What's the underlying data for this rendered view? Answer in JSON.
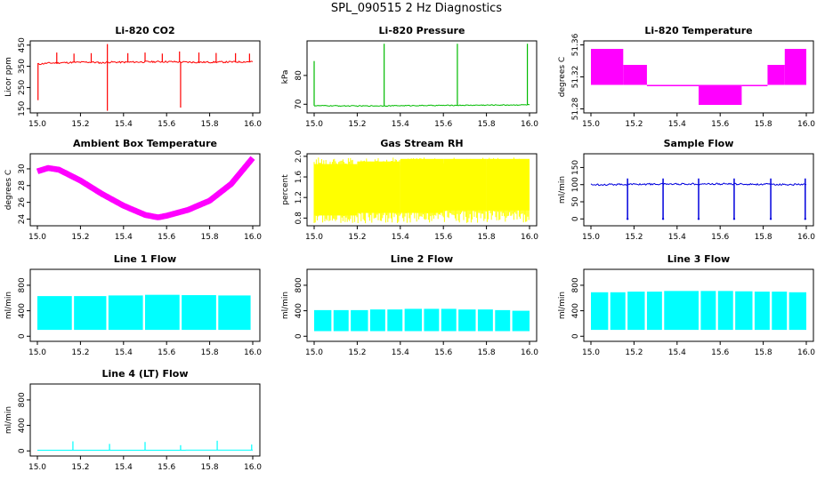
{
  "figure": {
    "title": "SPL_090515  2 Hz Diagnostics"
  },
  "chart_data": [
    {
      "id": "co2",
      "type": "line",
      "title": "Li-820 CO2",
      "ylabel": "Licor ppm",
      "xlim": [
        15.0,
        16.0
      ],
      "ylim": [
        130,
        470
      ],
      "xticks": [
        15.0,
        15.2,
        15.4,
        15.6,
        15.8,
        16.0
      ],
      "xtick_labels": [
        "15.0",
        "15.2",
        "15.4",
        "15.6",
        "15.8",
        "16.0"
      ],
      "yticks": [
        150,
        250,
        350,
        450
      ],
      "ytick_labels": [
        "150",
        "250",
        "350",
        "450"
      ],
      "color": "#ff0000",
      "series": [
        {
          "x": [
            15.0,
            15.05,
            15.15,
            15.25,
            15.3,
            15.33,
            15.4,
            15.5,
            15.6,
            15.67,
            15.75,
            15.85,
            15.95,
            16.0
          ],
          "y": [
            360,
            365,
            368,
            370,
            366,
            370,
            369,
            371,
            372,
            370,
            369,
            370,
            371,
            372
          ]
        }
      ],
      "spikes": [
        {
          "x": 15.003,
          "y": 190
        },
        {
          "x": 15.09,
          "y": 415
        },
        {
          "x": 15.17,
          "y": 410
        },
        {
          "x": 15.25,
          "y": 412
        },
        {
          "x": 15.325,
          "y": 140
        },
        {
          "x": 15.325,
          "y": 455
        },
        {
          "x": 15.42,
          "y": 412
        },
        {
          "x": 15.5,
          "y": 415
        },
        {
          "x": 15.58,
          "y": 410
        },
        {
          "x": 15.665,
          "y": 155
        },
        {
          "x": 15.66,
          "y": 420
        },
        {
          "x": 15.75,
          "y": 415
        },
        {
          "x": 15.83,
          "y": 413
        },
        {
          "x": 15.92,
          "y": 412
        },
        {
          "x": 15.985,
          "y": 410
        }
      ]
    },
    {
      "id": "pressure",
      "type": "line",
      "title": "Li-820 Pressure",
      "ylabel": "kPa",
      "xlim": [
        15.0,
        16.0
      ],
      "ylim": [
        67,
        92
      ],
      "xticks": [
        15.0,
        15.2,
        15.4,
        15.6,
        15.8,
        16.0
      ],
      "xtick_labels": [
        "15.0",
        "15.2",
        "15.4",
        "15.6",
        "15.8",
        "16.0"
      ],
      "yticks": [
        70,
        80
      ],
      "ytick_labels": [
        "70",
        "80"
      ],
      "color": "#00bb00",
      "series": [
        {
          "x": [
            15.0,
            15.2,
            15.4,
            15.6,
            15.8,
            16.0
          ],
          "y": [
            69.5,
            69.4,
            69.5,
            69.6,
            69.7,
            69.8
          ]
        }
      ],
      "spikes": [
        {
          "x": 15.0,
          "y": 85
        },
        {
          "x": 15.325,
          "y": 91
        },
        {
          "x": 15.665,
          "y": 91
        },
        {
          "x": 15.99,
          "y": 91
        }
      ]
    },
    {
      "id": "temperature",
      "type": "line",
      "title": "Li-820 Temperature",
      "ylabel": "degrees C",
      "xlim": [
        15.0,
        16.0
      ],
      "ylim": [
        51.275,
        51.365
      ],
      "xticks": [
        15.0,
        15.2,
        15.4,
        15.6,
        15.8,
        16.0
      ],
      "xtick_labels": [
        "15.0",
        "15.2",
        "15.4",
        "15.6",
        "15.8",
        "16.0"
      ],
      "yticks": [
        51.28,
        51.32,
        51.36
      ],
      "ytick_labels": [
        "51.28",
        "51.32",
        "51.36"
      ],
      "color": "#ff00ff",
      "segments": [
        {
          "x0": 15.0,
          "x1": 15.15,
          "lo": 51.31,
          "hi": 51.355
        },
        {
          "x0": 15.15,
          "x1": 15.26,
          "lo": 51.31,
          "hi": 51.335
        },
        {
          "x0": 15.26,
          "x1": 15.5,
          "lo": 51.31,
          "hi": 51.31
        },
        {
          "x0": 15.5,
          "x1": 15.7,
          "lo": 51.285,
          "hi": 51.31
        },
        {
          "x0": 15.7,
          "x1": 15.82,
          "lo": 51.31,
          "hi": 51.31
        },
        {
          "x0": 15.82,
          "x1": 15.9,
          "lo": 51.31,
          "hi": 51.335
        },
        {
          "x0": 15.9,
          "x1": 16.0,
          "lo": 51.31,
          "hi": 51.355
        }
      ]
    },
    {
      "id": "ambient",
      "type": "line",
      "title": "Ambient Box Temperature",
      "ylabel": "degrees C",
      "xlim": [
        15.0,
        16.0
      ],
      "ylim": [
        23.2,
        31.8
      ],
      "xticks": [
        15.0,
        15.2,
        15.4,
        15.6,
        15.8,
        16.0
      ],
      "xtick_labels": [
        "15.0",
        "15.2",
        "15.4",
        "15.6",
        "15.8",
        "16.0"
      ],
      "yticks": [
        24,
        26,
        28,
        30
      ],
      "ytick_labels": [
        "24",
        "26",
        "28",
        "30"
      ],
      "color": "#ff00ff",
      "band": 0.7,
      "series": [
        {
          "x": [
            15.0,
            15.05,
            15.1,
            15.2,
            15.3,
            15.4,
            15.5,
            15.56,
            15.6,
            15.7,
            15.8,
            15.9,
            16.0
          ],
          "y": [
            29.7,
            30.1,
            29.9,
            28.6,
            27.0,
            25.6,
            24.5,
            24.2,
            24.4,
            25.1,
            26.2,
            28.2,
            31.3
          ]
        }
      ]
    },
    {
      "id": "rh",
      "type": "line",
      "title": "Gas Stream RH",
      "ylabel": "percent",
      "xlim": [
        15.0,
        16.0
      ],
      "ylim": [
        0.65,
        2.05
      ],
      "xticks": [
        15.0,
        15.2,
        15.4,
        15.6,
        15.8,
        16.0
      ],
      "xtick_labels": [
        "15.0",
        "15.2",
        "15.4",
        "15.6",
        "15.8",
        "16.0"
      ],
      "yticks": [
        0.8,
        1.2,
        1.6,
        2.0
      ],
      "ytick_labels": [
        "0.8",
        "1.2",
        "1.6",
        "2.0"
      ],
      "color": "#ffff00",
      "segments": [
        {
          "x0": 15.0,
          "x1": 15.2,
          "lo": 0.85,
          "hi": 1.85
        },
        {
          "x0": 15.2,
          "x1": 15.4,
          "lo": 0.9,
          "hi": 1.9
        },
        {
          "x0": 15.4,
          "x1": 15.6,
          "lo": 0.9,
          "hi": 1.95
        },
        {
          "x0": 15.6,
          "x1": 15.8,
          "lo": 0.95,
          "hi": 1.95
        },
        {
          "x0": 15.8,
          "x1": 16.0,
          "lo": 0.95,
          "hi": 1.95
        }
      ]
    },
    {
      "id": "sample_flow",
      "type": "line",
      "title": "Sample Flow",
      "ylabel": "ml/min",
      "xlim": [
        15.0,
        16.0
      ],
      "ylim": [
        -20,
        190
      ],
      "xticks": [
        15.0,
        15.2,
        15.4,
        15.6,
        15.8,
        16.0
      ],
      "xtick_labels": [
        "15.0",
        "15.2",
        "15.4",
        "15.6",
        "15.8",
        "16.0"
      ],
      "yticks": [
        0,
        50,
        100,
        150
      ],
      "ytick_labels": [
        "0",
        "50",
        "100",
        "150"
      ],
      "color": "#0000dd",
      "series": [
        {
          "x": [
            15.0,
            15.2,
            15.4,
            15.6,
            15.8,
            16.0
          ],
          "y": [
            100,
            101,
            102,
            102,
            101,
            100
          ]
        }
      ],
      "dips": [
        15.17,
        15.335,
        15.5,
        15.665,
        15.835,
        15.995
      ]
    },
    {
      "id": "line1",
      "type": "line",
      "title": "Line 1 Flow",
      "ylabel": "ml/min",
      "xlim": [
        15.0,
        16.0
      ],
      "ylim": [
        -80,
        1050
      ],
      "xticks": [
        15.0,
        15.2,
        15.4,
        15.6,
        15.8,
        16.0
      ],
      "xtick_labels": [
        "15.0",
        "15.2",
        "15.4",
        "15.6",
        "15.8",
        "16.0"
      ],
      "yticks": [
        0,
        400,
        800
      ],
      "ytick_labels": [
        "0",
        "400",
        "800"
      ],
      "color": "#00ffff",
      "segments": [
        {
          "x0": 15.0,
          "x1": 15.16,
          "lo": 100,
          "hi": 630
        },
        {
          "x0": 15.17,
          "x1": 15.32,
          "lo": 100,
          "hi": 630
        },
        {
          "x0": 15.33,
          "x1": 15.49,
          "lo": 100,
          "hi": 640
        },
        {
          "x0": 15.5,
          "x1": 15.66,
          "lo": 100,
          "hi": 650
        },
        {
          "x0": 15.67,
          "x1": 15.83,
          "lo": 100,
          "hi": 645
        },
        {
          "x0": 15.84,
          "x1": 15.99,
          "lo": 100,
          "hi": 640
        }
      ]
    },
    {
      "id": "line2",
      "type": "line",
      "title": "Line 2 Flow",
      "ylabel": "ml/min",
      "xlim": [
        15.0,
        16.0
      ],
      "ylim": [
        -80,
        1050
      ],
      "xticks": [
        15.0,
        15.2,
        15.4,
        15.6,
        15.8,
        16.0
      ],
      "xtick_labels": [
        "15.0",
        "15.2",
        "15.4",
        "15.6",
        "15.8",
        "16.0"
      ],
      "yticks": [
        0,
        400,
        800
      ],
      "ytick_labels": [
        "0",
        "400",
        "800"
      ],
      "color": "#00ffff",
      "segments": [
        {
          "x0": 15.0,
          "x1": 15.08,
          "lo": 80,
          "hi": 410
        },
        {
          "x0": 15.09,
          "x1": 15.16,
          "lo": 80,
          "hi": 410
        },
        {
          "x0": 15.17,
          "x1": 15.25,
          "lo": 80,
          "hi": 410
        },
        {
          "x0": 15.26,
          "x1": 15.33,
          "lo": 80,
          "hi": 420
        },
        {
          "x0": 15.34,
          "x1": 15.41,
          "lo": 80,
          "hi": 420
        },
        {
          "x0": 15.42,
          "x1": 15.5,
          "lo": 80,
          "hi": 430
        },
        {
          "x0": 15.51,
          "x1": 15.58,
          "lo": 80,
          "hi": 430
        },
        {
          "x0": 15.59,
          "x1": 15.66,
          "lo": 80,
          "hi": 430
        },
        {
          "x0": 15.67,
          "x1": 15.75,
          "lo": 80,
          "hi": 420
        },
        {
          "x0": 15.76,
          "x1": 15.83,
          "lo": 80,
          "hi": 420
        },
        {
          "x0": 15.84,
          "x1": 15.91,
          "lo": 80,
          "hi": 410
        },
        {
          "x0": 15.92,
          "x1": 16.0,
          "lo": 80,
          "hi": 400
        }
      ]
    },
    {
      "id": "line3",
      "type": "line",
      "title": "Line 3 Flow",
      "ylabel": "ml/min",
      "xlim": [
        15.0,
        16.0
      ],
      "ylim": [
        -80,
        1050
      ],
      "xticks": [
        15.0,
        15.2,
        15.4,
        15.6,
        15.8,
        16.0
      ],
      "xtick_labels": [
        "15.0",
        "15.2",
        "15.4",
        "15.6",
        "15.8",
        "16.0"
      ],
      "yticks": [
        0,
        400,
        800
      ],
      "ytick_labels": [
        "0",
        "400",
        "800"
      ],
      "color": "#00ffff",
      "segments": [
        {
          "x0": 15.0,
          "x1": 15.08,
          "lo": 100,
          "hi": 690
        },
        {
          "x0": 15.09,
          "x1": 15.16,
          "lo": 100,
          "hi": 690
        },
        {
          "x0": 15.17,
          "x1": 15.25,
          "lo": 100,
          "hi": 700
        },
        {
          "x0": 15.26,
          "x1": 15.33,
          "lo": 100,
          "hi": 700
        },
        {
          "x0": 15.34,
          "x1": 15.5,
          "lo": 100,
          "hi": 710
        },
        {
          "x0": 15.51,
          "x1": 15.58,
          "lo": 100,
          "hi": 710
        },
        {
          "x0": 15.59,
          "x1": 15.66,
          "lo": 100,
          "hi": 710
        },
        {
          "x0": 15.67,
          "x1": 15.75,
          "lo": 100,
          "hi": 705
        },
        {
          "x0": 15.76,
          "x1": 15.83,
          "lo": 100,
          "hi": 700
        },
        {
          "x0": 15.84,
          "x1": 15.91,
          "lo": 100,
          "hi": 700
        },
        {
          "x0": 15.92,
          "x1": 16.0,
          "lo": 100,
          "hi": 690
        }
      ]
    },
    {
      "id": "line4",
      "type": "line",
      "title": "Line 4 (LT) Flow",
      "ylabel": "ml/min",
      "xlim": [
        15.0,
        16.0
      ],
      "ylim": [
        -80,
        1050
      ],
      "xticks": [
        15.0,
        15.2,
        15.4,
        15.6,
        15.8,
        16.0
      ],
      "xtick_labels": [
        "15.0",
        "15.2",
        "15.4",
        "15.6",
        "15.8",
        "16.0"
      ],
      "yticks": [
        0,
        400,
        800
      ],
      "ytick_labels": [
        "0",
        "400",
        "800"
      ],
      "color": "#00ffff",
      "series": [
        {
          "x": [
            15.0,
            16.0
          ],
          "y": [
            10,
            12
          ]
        }
      ],
      "spikes": [
        {
          "x": 15.165,
          "y": 150
        },
        {
          "x": 15.335,
          "y": 110
        },
        {
          "x": 15.5,
          "y": 140
        },
        {
          "x": 15.665,
          "y": 90
        },
        {
          "x": 15.835,
          "y": 160
        },
        {
          "x": 15.995,
          "y": 100
        }
      ]
    }
  ]
}
